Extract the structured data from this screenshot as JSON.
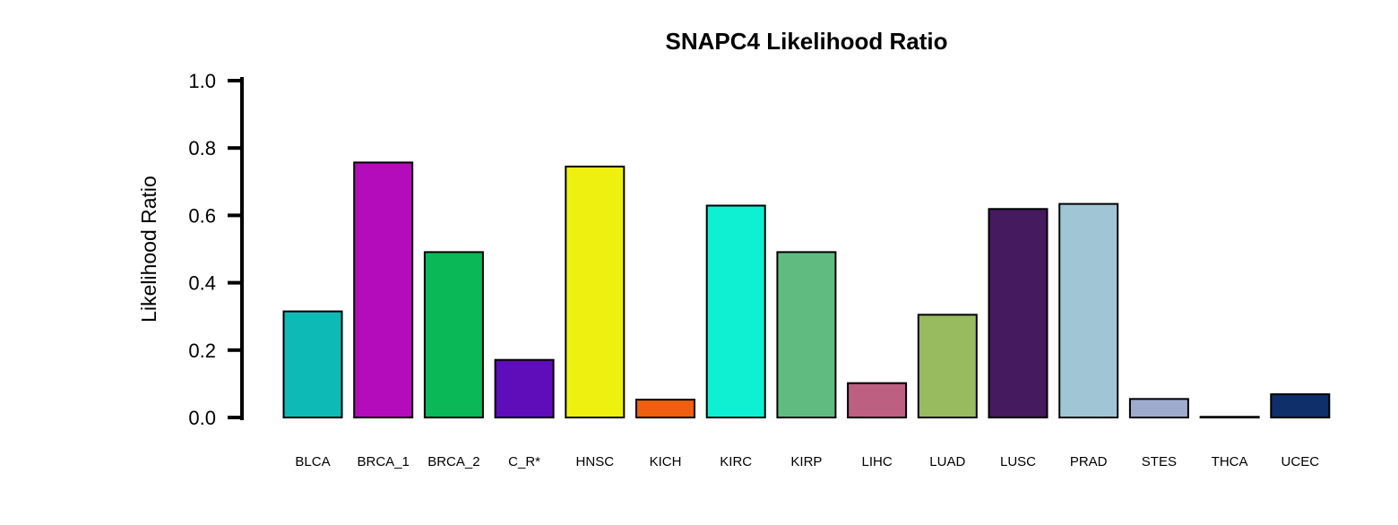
{
  "chart_data": {
    "type": "bar",
    "title": "SNAPC4 Likelihood Ratio",
    "ylabel": "Likelihood Ratio",
    "xlabel": "",
    "ylim": [
      0,
      1.0
    ],
    "yticks": [
      "0.0",
      "0.2",
      "0.4",
      "0.6",
      "0.8",
      "1.0"
    ],
    "grid": false,
    "categories": [
      "BLCA",
      "BRCA_1",
      "BRCA_2",
      "C_R*",
      "HNSC",
      "KICH",
      "KIRC",
      "KIRP",
      "LIHC",
      "LUAD",
      "LUSC",
      "PRAD",
      "STES",
      "THCA",
      "UCEC"
    ],
    "values": [
      0.315,
      0.757,
      0.491,
      0.171,
      0.745,
      0.053,
      0.629,
      0.491,
      0.102,
      0.305,
      0.619,
      0.634,
      0.055,
      0.002,
      0.069
    ],
    "colors": [
      "#0ebab5",
      "#b40cba",
      "#0bb858",
      "#5f0cba",
      "#eef00f",
      "#f05e10",
      "#0ff0d3",
      "#60bb80",
      "#bd5f80",
      "#98bb60",
      "#461a5e",
      "#a0c5d5",
      "#9faacf",
      "#1a1a1a",
      "#0e2f6a"
    ]
  }
}
